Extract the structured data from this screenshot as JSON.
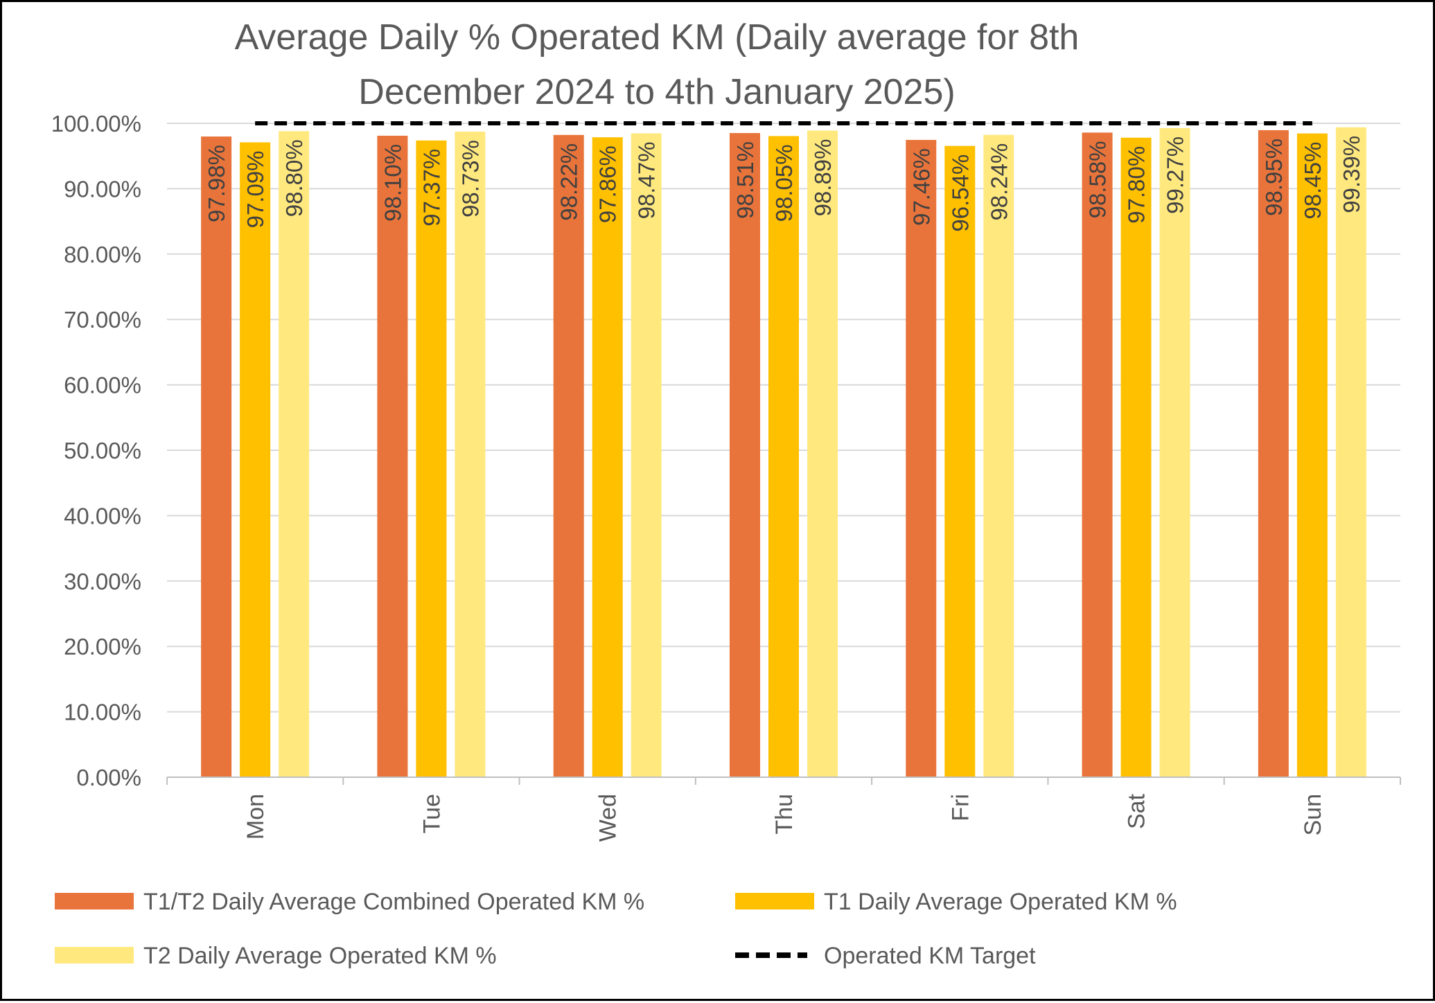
{
  "chart_data": {
    "type": "bar",
    "title": "Average Daily % Operated KM (Daily average for 8th December 2024 to 4th January 2025)",
    "title_lines": [
      "Average Daily % Operated KM (Daily average for 8th",
      "December 2024 to 4th January 2025)"
    ],
    "categories": [
      "Mon",
      "Tue",
      "Wed",
      "Thu",
      "Fri",
      "Sat",
      "Sun"
    ],
    "series": [
      {
        "name": "T1/T2 Daily Average Combined Operated KM %",
        "color": "#E8743B",
        "values": [
          97.98,
          98.1,
          98.22,
          98.51,
          97.46,
          98.58,
          98.95
        ],
        "labels": [
          "97.98%",
          "98.10%",
          "98.22%",
          "98.51%",
          "97.46%",
          "98.58%",
          "98.95%"
        ]
      },
      {
        "name": "T1 Daily Average Operated KM %",
        "color": "#FFC000",
        "values": [
          97.09,
          97.37,
          97.86,
          98.05,
          96.54,
          97.8,
          98.45
        ],
        "labels": [
          "97.09%",
          "97.37%",
          "97.86%",
          "98.05%",
          "96.54%",
          "97.80%",
          "98.45%"
        ]
      },
      {
        "name": "T2 Daily Average Operated KM %",
        "color": "#FFE97F",
        "values": [
          98.8,
          98.73,
          98.47,
          98.89,
          98.24,
          99.27,
          99.39
        ],
        "labels": [
          "98.80%",
          "98.73%",
          "98.47%",
          "98.89%",
          "98.24%",
          "99.27%",
          "99.39%"
        ]
      }
    ],
    "target": {
      "name": "Operated KM Target",
      "value": 100,
      "color": "#000000",
      "style": "dashed"
    },
    "ylim": [
      0,
      100
    ],
    "ytick_values": [
      0,
      10,
      20,
      30,
      40,
      50,
      60,
      70,
      80,
      90,
      100
    ],
    "ytick_labels": [
      "0.00%",
      "10.00%",
      "20.00%",
      "30.00%",
      "40.00%",
      "50.00%",
      "60.00%",
      "70.00%",
      "80.00%",
      "90.00%",
      "100.00%"
    ],
    "xlabel": "",
    "ylabel": "",
    "grid": true,
    "legend_position": "bottom",
    "colors": {
      "grid": "#D9D9D9",
      "axis": "#BFBFBF",
      "text": "#595959"
    }
  }
}
